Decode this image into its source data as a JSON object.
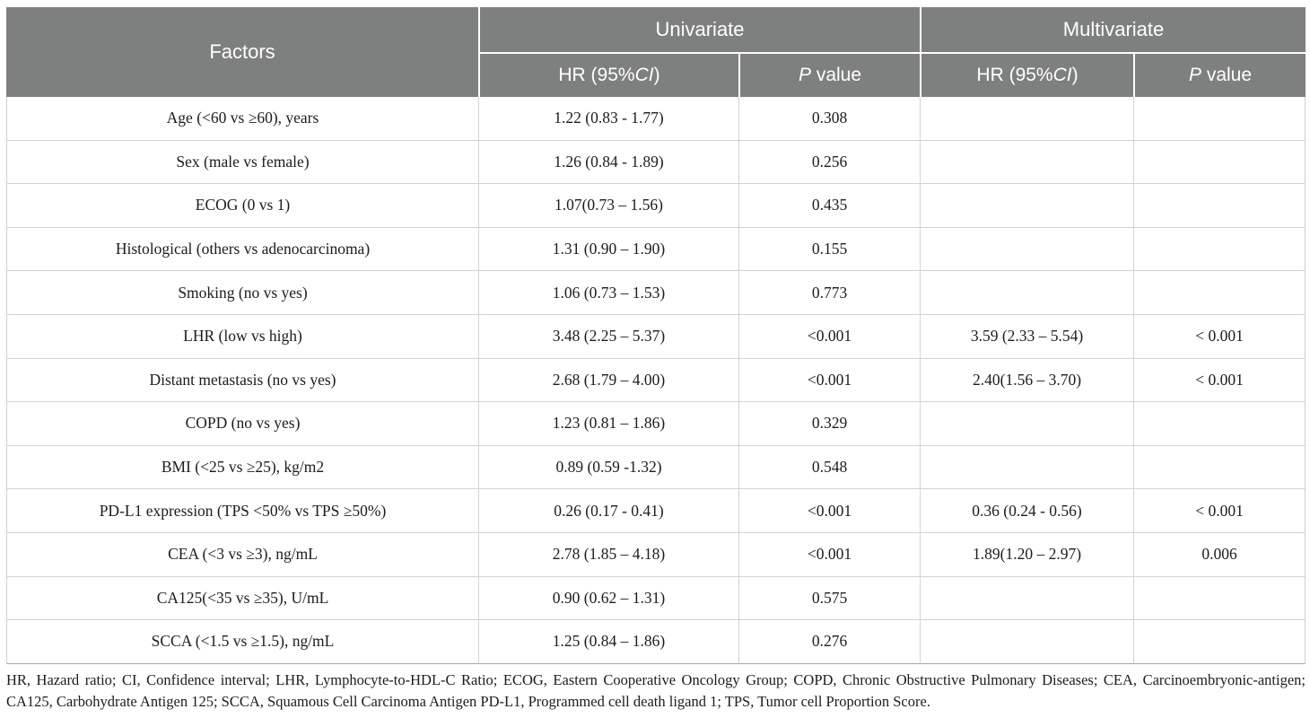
{
  "meta": {
    "header_bg_color": "#7e807f",
    "header_text_color": "#ffffff",
    "body_text_color": "#1c1c1c",
    "grid_line_color": "#d3d3d3"
  },
  "table": {
    "header": {
      "factors": "Factors",
      "univariate": "Univariate",
      "multivariate": "Multivariate",
      "hr_prefix": "HR (95%",
      "hr_ci": "CI",
      "hr_suffix": ")",
      "p_italic": "P",
      "p_rest": " value"
    },
    "rows": [
      {
        "factor": "Age (<60 vs ≥60), years",
        "uni_hr": "1.22 (0.83 - 1.77)",
        "uni_p": "0.308",
        "multi_hr": "",
        "multi_p": ""
      },
      {
        "factor": "Sex (male vs female)",
        "uni_hr": "1.26 (0.84 - 1.89)",
        "uni_p": "0.256",
        "multi_hr": "",
        "multi_p": ""
      },
      {
        "factor": "ECOG (0 vs 1)",
        "uni_hr": "1.07(0.73 – 1.56)",
        "uni_p": "0.435",
        "multi_hr": "",
        "multi_p": ""
      },
      {
        "factor": "Histological (others vs adenocarcinoma)",
        "uni_hr": "1.31 (0.90 – 1.90)",
        "uni_p": "0.155",
        "multi_hr": "",
        "multi_p": ""
      },
      {
        "factor": "Smoking (no vs yes)",
        "uni_hr": "1.06 (0.73 – 1.53)",
        "uni_p": "0.773",
        "multi_hr": "",
        "multi_p": ""
      },
      {
        "factor": "LHR (low vs high)",
        "uni_hr": "3.48 (2.25 – 5.37)",
        "uni_p": "<0.001",
        "multi_hr": "3.59 (2.33 – 5.54)",
        "multi_p": "< 0.001"
      },
      {
        "factor": "Distant metastasis (no vs yes)",
        "uni_hr": "2.68 (1.79 – 4.00)",
        "uni_p": "<0.001",
        "multi_hr": "2.40(1.56 – 3.70)",
        "multi_p": "< 0.001"
      },
      {
        "factor": "COPD (no vs yes)",
        "uni_hr": "1.23 (0.81 – 1.86)",
        "uni_p": "0.329",
        "multi_hr": "",
        "multi_p": ""
      },
      {
        "factor": "BMI (<25 vs ≥25), kg/m2",
        "uni_hr": "0.89 (0.59 -1.32)",
        "uni_p": "0.548",
        "multi_hr": "",
        "multi_p": ""
      },
      {
        "factor": "PD-L1 expression (TPS <50% vs TPS ≥50%)",
        "uni_hr": "0.26 (0.17 - 0.41)",
        "uni_p": "<0.001",
        "multi_hr": "0.36 (0.24 - 0.56)",
        "multi_p": "< 0.001"
      },
      {
        "factor": "CEA (<3 vs ≥3), ng/mL",
        "uni_hr": "2.78 (1.85 – 4.18)",
        "uni_p": "<0.001",
        "multi_hr": "1.89(1.20 – 2.97)",
        "multi_p": "0.006"
      },
      {
        "factor": "CA125(<35 vs ≥35), U/mL",
        "uni_hr": "0.90 (0.62 – 1.31)",
        "uni_p": "0.575",
        "multi_hr": "",
        "multi_p": ""
      },
      {
        "factor": "SCCA (<1.5 vs ≥1.5), ng/mL",
        "uni_hr": "1.25 (0.84 – 1.86)",
        "uni_p": "0.276",
        "multi_hr": "",
        "multi_p": ""
      }
    ]
  },
  "footnote": {
    "text": "HR, Hazard ratio; CI, Confidence interval; LHR, Lymphocyte-to-HDL-C Ratio; ECOG, Eastern Cooperative Oncology Group; COPD, Chronic Obstructive Pulmonary Diseases; CEA, Carcinoembryonic-antigen; CA125, Carbohydrate Antigen 125; SCCA, Squamous Cell Carcinoma Antigen PD-L1, Programmed cell death ligand 1; TPS, Tumor cell Proportion Score."
  }
}
